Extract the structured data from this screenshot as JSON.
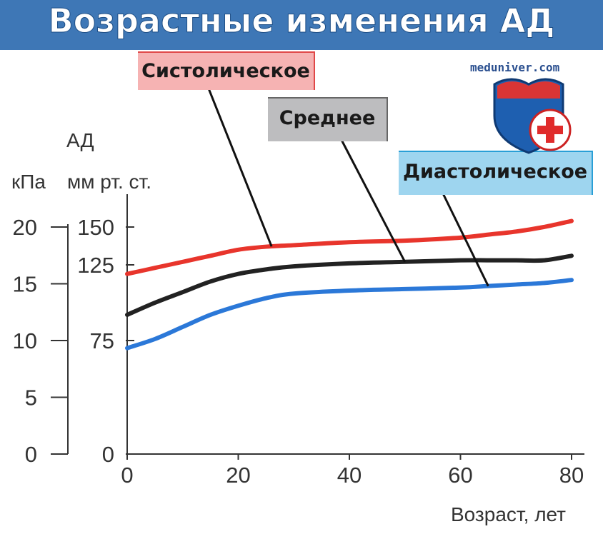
{
  "title": "Возрастные изменения АД",
  "site": "meduniver.com",
  "logo_icon": "shield-cross-icon",
  "colors": {
    "header": "#3e77b6",
    "systolic": "#e8352c",
    "mean": "#222222",
    "diastolic": "#2b78d8"
  },
  "chart_data": {
    "type": "line",
    "xlabel": "Возраст, лет",
    "ylabel": "АД",
    "yunits_left": "кПа",
    "yunits_right": "мм рт. ст.",
    "xlim": [
      0,
      80
    ],
    "ylim": [
      0,
      160
    ],
    "xticks": [
      0,
      20,
      40,
      60,
      80
    ],
    "yticks_mmhg": [
      0,
      75,
      125,
      150
    ],
    "yticks_kpa": [
      0,
      5,
      10,
      15,
      20
    ],
    "grid": false,
    "x": [
      0,
      5,
      10,
      15,
      20,
      25,
      30,
      40,
      50,
      60,
      65,
      70,
      75,
      80
    ],
    "series": [
      {
        "name": "Систолическое",
        "values": [
          119,
          123,
          127,
          131,
          135,
          137,
          138,
          140,
          141,
          143,
          145,
          147,
          150,
          154
        ]
      },
      {
        "name": "Среднее",
        "values": [
          92,
          100,
          107,
          114,
          119,
          122,
          124,
          126,
          127,
          128,
          128,
          128,
          128,
          131
        ]
      },
      {
        "name": "Диастолическое",
        "values": [
          70,
          76,
          84,
          92,
          98,
          103,
          106,
          108,
          109,
          110,
          111,
          112,
          113,
          115
        ]
      }
    ]
  }
}
